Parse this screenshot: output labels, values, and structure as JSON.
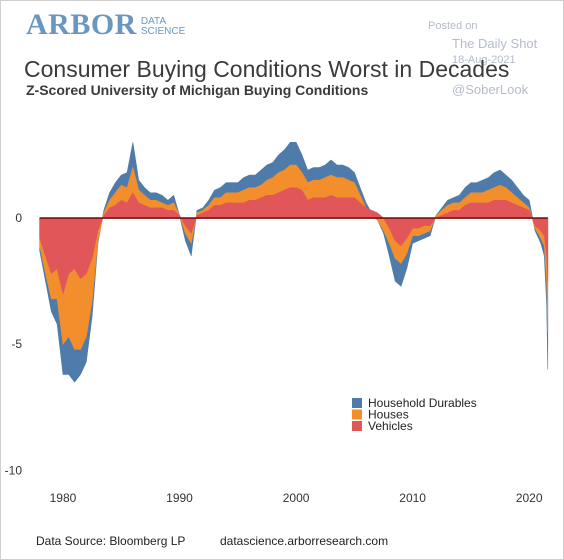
{
  "branding": {
    "logo_main": "ARBOR",
    "logo_sub_line1": "DATA",
    "logo_sub_line2": "SCIENCE"
  },
  "watermark": {
    "posted_on": "Posted on",
    "publication": "The Daily Shot",
    "date": "18-Aug-2021",
    "handle": "@SoberLook"
  },
  "footer": {
    "source": "Data Source: Bloomberg LP",
    "url": "datascience.arborresearch.com"
  },
  "colors": {
    "household_durables": "#4f7bab",
    "houses": "#f28e2b",
    "vehicles": "#e15759",
    "zero_line": "#7a0f0f"
  },
  "chart_data": {
    "type": "area",
    "title": "Consumer Buying Conditions Worst in Decades",
    "subtitle": "Z-Scored University of Michigan Buying Conditions",
    "xlabel": "",
    "ylabel": "",
    "xlim": [
      1977,
      2022.3
    ],
    "ylim": [
      -10.3,
      4.2
    ],
    "x_ticks": [
      1980,
      1990,
      2000,
      2010,
      2020
    ],
    "y_ticks": [
      0,
      -5,
      -10
    ],
    "grid": false,
    "stacked": true,
    "legend_position": "bottom-right",
    "x": [
      1978.0,
      1978.5,
      1979.0,
      1979.5,
      1980.0,
      1980.5,
      1981.0,
      1981.5,
      1982.0,
      1982.5,
      1983.0,
      1983.5,
      1984.0,
      1984.5,
      1985.0,
      1985.5,
      1986.0,
      1986.5,
      1987.0,
      1987.5,
      1988.0,
      1988.5,
      1989.0,
      1989.5,
      1990.0,
      1990.5,
      1991.0,
      1991.5,
      1992.0,
      1992.5,
      1993.0,
      1993.5,
      1994.0,
      1994.5,
      1995.0,
      1995.5,
      1996.0,
      1996.5,
      1997.0,
      1997.5,
      1998.0,
      1998.5,
      1999.0,
      1999.5,
      2000.0,
      2000.5,
      2001.0,
      2001.5,
      2002.0,
      2002.5,
      2003.0,
      2003.5,
      2004.0,
      2004.5,
      2005.0,
      2005.5,
      2006.0,
      2006.5,
      2007.0,
      2007.5,
      2008.0,
      2008.5,
      2009.0,
      2009.5,
      2010.0,
      2010.5,
      2011.0,
      2011.5,
      2012.0,
      2012.5,
      2013.0,
      2013.5,
      2014.0,
      2014.5,
      2015.0,
      2015.5,
      2016.0,
      2016.5,
      2017.0,
      2017.5,
      2018.0,
      2018.5,
      2019.0,
      2019.5,
      2020.0,
      2020.5,
      2021.0,
      2021.3,
      2021.5,
      2021.6
    ],
    "series": [
      {
        "name": "Vehicles",
        "values": [
          -0.8,
          -1.5,
          -2.2,
          -2.0,
          -3.0,
          -2.2,
          -2.0,
          -2.4,
          -2.2,
          -1.6,
          -0.5,
          0.1,
          0.4,
          0.5,
          0.7,
          0.6,
          1.0,
          0.6,
          0.5,
          0.4,
          0.4,
          0.4,
          0.3,
          0.3,
          0.1,
          -0.3,
          -0.6,
          0.1,
          0.2,
          0.3,
          0.5,
          0.5,
          0.6,
          0.6,
          0.6,
          0.6,
          0.7,
          0.7,
          0.8,
          0.9,
          0.9,
          1.0,
          1.1,
          1.2,
          1.2,
          1.1,
          0.7,
          0.8,
          0.8,
          0.8,
          0.9,
          0.8,
          0.8,
          0.8,
          0.8,
          0.6,
          0.4,
          0.3,
          0.2,
          0.0,
          -0.4,
          -0.9,
          -1.1,
          -0.8,
          -0.4,
          -0.4,
          -0.3,
          -0.3,
          0.0,
          0.1,
          0.2,
          0.3,
          0.3,
          0.5,
          0.6,
          0.6,
          0.6,
          0.6,
          0.7,
          0.7,
          0.7,
          0.6,
          0.5,
          0.4,
          0.3,
          -0.3,
          -0.5,
          -0.7,
          -1.5,
          -2.5
        ]
      },
      {
        "name": "Houses",
        "values": [
          -0.3,
          -0.7,
          -1.0,
          -1.2,
          -2.0,
          -2.5,
          -3.2,
          -2.8,
          -2.5,
          -1.7,
          -0.4,
          0.1,
          0.3,
          0.5,
          0.6,
          0.6,
          1.0,
          0.5,
          0.4,
          0.3,
          0.3,
          0.2,
          0.2,
          0.3,
          0.0,
          -0.3,
          -0.4,
          0.1,
          0.1,
          0.2,
          0.3,
          0.3,
          0.4,
          0.4,
          0.4,
          0.5,
          0.5,
          0.5,
          0.5,
          0.6,
          0.7,
          0.8,
          0.8,
          0.9,
          0.9,
          0.7,
          0.7,
          0.7,
          0.7,
          0.8,
          0.8,
          0.8,
          0.8,
          0.7,
          0.6,
          0.3,
          0.0,
          -0.2,
          -0.3,
          -0.5,
          -0.6,
          -0.7,
          -0.7,
          -0.6,
          -0.3,
          -0.3,
          -0.3,
          -0.2,
          0.1,
          0.2,
          0.3,
          0.3,
          0.3,
          0.3,
          0.4,
          0.4,
          0.4,
          0.5,
          0.5,
          0.6,
          0.5,
          0.4,
          0.3,
          0.2,
          0.1,
          -0.1,
          -0.3,
          -0.4,
          -1.0,
          -2.0
        ]
      },
      {
        "name": "Household Durables",
        "values": [
          -0.2,
          -0.3,
          -0.5,
          -1.0,
          -1.2,
          -1.5,
          -1.3,
          -1.0,
          -1.0,
          -0.6,
          -0.1,
          0.1,
          0.3,
          0.4,
          0.4,
          0.6,
          1.0,
          0.4,
          0.3,
          0.3,
          0.3,
          0.3,
          0.2,
          0.3,
          0.0,
          -0.3,
          -0.5,
          0.1,
          0.1,
          0.2,
          0.3,
          0.4,
          0.4,
          0.4,
          0.4,
          0.5,
          0.5,
          0.5,
          0.6,
          0.6,
          0.6,
          0.7,
          0.8,
          0.9,
          0.9,
          0.7,
          0.5,
          0.5,
          0.5,
          0.5,
          0.6,
          0.5,
          0.5,
          0.5,
          0.4,
          0.3,
          0.2,
          0.1,
          0.0,
          -0.1,
          -0.5,
          -0.9,
          -0.9,
          -0.6,
          -0.3,
          -0.2,
          -0.2,
          -0.2,
          0.0,
          0.1,
          0.2,
          0.2,
          0.3,
          0.4,
          0.4,
          0.4,
          0.5,
          0.5,
          0.6,
          0.6,
          0.5,
          0.5,
          0.4,
          0.3,
          0.3,
          -0.1,
          -0.2,
          -0.4,
          -1.0,
          -1.5
        ]
      }
    ],
    "draw_order": [
      "Household Durables",
      "Houses",
      "Vehicles"
    ]
  }
}
